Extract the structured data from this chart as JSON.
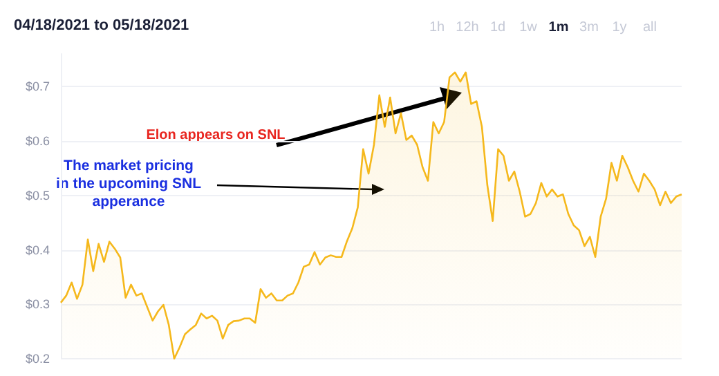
{
  "chart_data": {
    "type": "area",
    "title": "04/18/2021 to 05/18/2021",
    "annotations": [
      "Elon appears on SNL",
      "The market pricing\nin the upcoming SNL\napperance",
      "1h",
      "12h",
      "1d",
      "1w",
      "1m",
      "3m",
      "1y",
      "all"
    ],
    "categories": [
      null,
      null,
      null,
      null,
      null,
      null,
      null,
      null,
      null,
      null,
      null,
      null,
      null,
      null,
      null,
      null,
      null,
      null,
      null,
      null,
      null,
      null,
      null,
      null,
      null,
      null,
      null,
      null,
      null,
      null,
      null,
      null,
      null,
      null,
      null,
      null,
      null,
      null,
      null,
      null,
      null,
      null,
      null,
      null,
      null,
      null,
      null,
      null,
      null,
      null,
      null,
      null,
      null,
      null,
      null,
      null,
      null,
      null,
      null,
      null,
      null,
      null,
      null,
      null,
      null,
      null,
      null,
      null,
      null,
      null,
      null,
      null,
      null,
      null,
      null,
      null,
      null,
      null,
      null,
      null,
      null,
      null,
      null,
      null,
      null,
      null,
      null,
      null,
      null,
      null,
      null,
      null,
      null,
      null,
      null,
      null,
      null,
      null,
      null,
      null,
      null,
      null,
      null,
      null,
      null,
      null,
      null,
      null,
      null,
      null,
      null,
      null,
      null,
      null,
      null,
      null
    ],
    "series": [
      {
        "color": "#f5b81c",
        "values": [
          0.303,
          0.316,
          0.34,
          0.31,
          0.336,
          0.419,
          0.361,
          0.411,
          0.378,
          0.415,
          0.402,
          0.386,
          0.312,
          0.336,
          0.316,
          0.32,
          0.295,
          0.27,
          0.287,
          0.299,
          0.262,
          0.2,
          0.221,
          0.245,
          0.254,
          0.262,
          0.283,
          0.274,
          0.279,
          0.27,
          0.237,
          0.262,
          0.269,
          0.27,
          0.274,
          0.274,
          0.266,
          0.328,
          0.312,
          0.32,
          0.307,
          0.307,
          0.316,
          0.32,
          0.34,
          0.369,
          0.373,
          0.396,
          0.373,
          0.386,
          0.39,
          0.387,
          0.387,
          0.416,
          0.44,
          0.478,
          0.585,
          0.54,
          0.593,
          0.684,
          0.626,
          0.68,
          0.614,
          0.651,
          0.602,
          0.61,
          0.593,
          0.552,
          0.527,
          0.635,
          0.614,
          0.635,
          0.717,
          0.726,
          0.709,
          0.726,
          0.668,
          0.673,
          0.626,
          0.519,
          0.453,
          0.585,
          0.573,
          0.527,
          0.544,
          0.507,
          0.461,
          0.466,
          0.486,
          0.523,
          0.498,
          0.511,
          0.498,
          0.502,
          0.466,
          0.445,
          0.436,
          0.407,
          0.424,
          0.387,
          0.461,
          0.494,
          0.56,
          0.527,
          0.573,
          0.552,
          0.527,
          0.507,
          0.54,
          0.527,
          0.511,
          0.482,
          0.507,
          0.486,
          0.498,
          0.502
        ]
      }
    ],
    "ylim": [
      0.2,
      0.76
    ],
    "yticks": [
      {
        "value": 0.2,
        "label": "$0.2"
      },
      {
        "value": 0.3,
        "label": "$0.3"
      },
      {
        "value": 0.4,
        "label": "$0.4"
      },
      {
        "value": 0.5,
        "label": "$0.5"
      },
      {
        "value": 0.6,
        "label": "$0.6"
      },
      {
        "value": 0.7,
        "label": "$0.7"
      }
    ],
    "tick_labels": "y",
    "grid": "y"
  }
}
